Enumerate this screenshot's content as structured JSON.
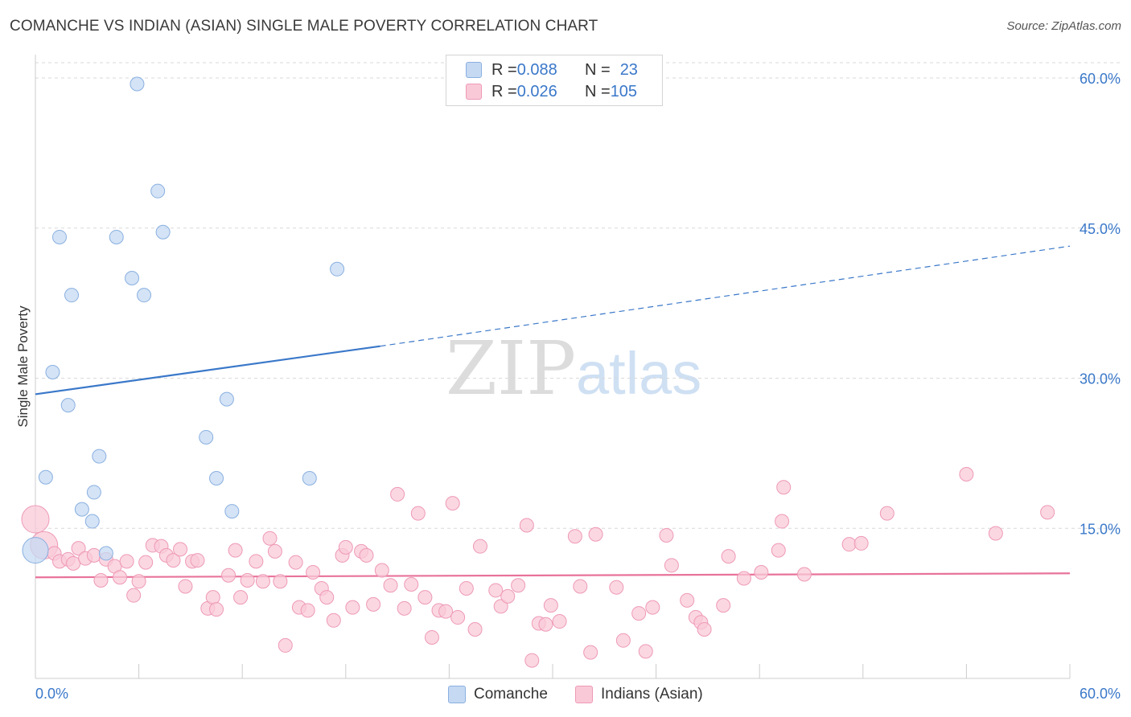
{
  "title": "COMANCHE VS INDIAN (ASIAN) SINGLE MALE POVERTY CORRELATION CHART",
  "source": "Source: ZipAtlas.com",
  "watermark": {
    "zip": "ZIP",
    "atlas": "atlas"
  },
  "legend_top": {
    "rows": [
      {
        "r_label": "R = ",
        "r_value": "0.088",
        "n_label": "N = ",
        "n_value": "23"
      },
      {
        "r_label": "R = ",
        "r_value": "0.026",
        "n_label": "N = ",
        "n_value": "105"
      }
    ]
  },
  "legend_bottom": [
    "Comanche",
    "Indians (Asian)"
  ],
  "colors": {
    "comanche_fill": "#c5d9f3",
    "comanche_stroke": "#8ab0e0",
    "comanche_line": "#3a78c9",
    "indian_fill": "#f9c9d8",
    "indian_stroke": "#ee9ab5",
    "indian_line": "#e8739a",
    "axis_label": "#3a78c9",
    "grid": "#d9d9d9"
  },
  "chart_data": {
    "type": "scatter",
    "title": "COMANCHE VS INDIAN (ASIAN) SINGLE MALE POVERTY CORRELATION CHART",
    "xlabel": "",
    "ylabel": "Single Male Poverty",
    "xlim": [
      0,
      60
    ],
    "ylim": [
      0,
      60
    ],
    "x_tick_labels": [
      "0.0%",
      "60.0%"
    ],
    "y_tick_values": [
      15,
      30,
      45,
      60
    ],
    "y_tick_labels": [
      "15.0%",
      "30.0%",
      "45.0%",
      "60.0%"
    ],
    "grid": true,
    "legend_position": "top-center",
    "series": [
      {
        "name": "Comanche",
        "r": 0.088,
        "n": 23,
        "trend": {
          "x0": 0,
          "y0": 28.4,
          "x1": 20,
          "y1": 33.2,
          "x_dash_end": 60,
          "y_dash_end": 43.2
        },
        "points": [
          [
            5.9,
            59.4
          ],
          [
            1.4,
            44.1
          ],
          [
            4.7,
            44.1
          ],
          [
            7.1,
            48.7
          ],
          [
            7.4,
            44.6
          ],
          [
            5.6,
            40.0
          ],
          [
            6.3,
            38.3
          ],
          [
            2.1,
            38.3
          ],
          [
            17.5,
            40.9
          ],
          [
            1.0,
            30.6
          ],
          [
            1.9,
            27.3
          ],
          [
            11.1,
            27.9
          ],
          [
            3.7,
            22.2
          ],
          [
            9.9,
            24.1
          ],
          [
            0.6,
            20.1
          ],
          [
            10.5,
            20.0
          ],
          [
            15.9,
            20.0
          ],
          [
            3.4,
            18.6
          ],
          [
            2.7,
            16.9
          ],
          [
            3.3,
            15.7
          ],
          [
            11.4,
            16.7
          ],
          [
            4.1,
            12.5
          ],
          [
            0.0,
            12.8
          ]
        ],
        "large_points": [
          [
            0.0,
            12.8
          ]
        ]
      },
      {
        "name": "Indians (Asian)",
        "r": 0.026,
        "n": 105,
        "trend": {
          "x0": 0,
          "y0": 10.1,
          "x1": 60,
          "y1": 10.5
        },
        "points": [
          [
            0.0,
            15.9
          ],
          [
            0.5,
            13.3
          ],
          [
            1.1,
            12.5
          ],
          [
            1.4,
            11.7
          ],
          [
            1.9,
            11.9
          ],
          [
            2.2,
            11.5
          ],
          [
            2.5,
            13.0
          ],
          [
            2.9,
            12.0
          ],
          [
            3.4,
            12.3
          ],
          [
            3.8,
            9.8
          ],
          [
            4.1,
            11.9
          ],
          [
            4.6,
            11.2
          ],
          [
            4.9,
            10.1
          ],
          [
            5.3,
            11.7
          ],
          [
            5.7,
            8.3
          ],
          [
            6.0,
            9.7
          ],
          [
            6.4,
            11.6
          ],
          [
            6.8,
            13.3
          ],
          [
            7.3,
            13.2
          ],
          [
            7.6,
            12.3
          ],
          [
            8.0,
            11.8
          ],
          [
            8.4,
            12.9
          ],
          [
            8.7,
            9.2
          ],
          [
            9.1,
            11.7
          ],
          [
            9.4,
            11.8
          ],
          [
            10.0,
            7.0
          ],
          [
            10.3,
            8.1
          ],
          [
            10.5,
            6.9
          ],
          [
            11.2,
            10.3
          ],
          [
            11.6,
            12.8
          ],
          [
            11.9,
            8.1
          ],
          [
            12.3,
            9.8
          ],
          [
            12.8,
            11.7
          ],
          [
            13.2,
            9.7
          ],
          [
            13.6,
            14.0
          ],
          [
            13.9,
            12.7
          ],
          [
            14.2,
            9.7
          ],
          [
            14.5,
            3.3
          ],
          [
            15.1,
            11.6
          ],
          [
            15.3,
            7.1
          ],
          [
            15.8,
            6.8
          ],
          [
            16.1,
            10.6
          ],
          [
            16.6,
            9.0
          ],
          [
            16.9,
            8.1
          ],
          [
            17.3,
            5.8
          ],
          [
            17.8,
            12.3
          ],
          [
            18.0,
            13.1
          ],
          [
            18.4,
            7.1
          ],
          [
            18.9,
            12.7
          ],
          [
            19.2,
            12.3
          ],
          [
            19.6,
            7.4
          ],
          [
            20.1,
            10.8
          ],
          [
            20.6,
            9.3
          ],
          [
            21.0,
            18.4
          ],
          [
            21.4,
            7.0
          ],
          [
            21.8,
            9.4
          ],
          [
            22.2,
            16.5
          ],
          [
            22.6,
            8.1
          ],
          [
            23.0,
            4.1
          ],
          [
            23.4,
            6.8
          ],
          [
            23.8,
            6.7
          ],
          [
            24.2,
            17.5
          ],
          [
            24.5,
            6.1
          ],
          [
            25.0,
            9.0
          ],
          [
            25.5,
            4.9
          ],
          [
            25.8,
            13.2
          ],
          [
            26.7,
            8.8
          ],
          [
            27.0,
            7.2
          ],
          [
            27.4,
            8.2
          ],
          [
            28.0,
            9.3
          ],
          [
            28.5,
            15.3
          ],
          [
            28.8,
            1.8
          ],
          [
            29.2,
            5.5
          ],
          [
            29.6,
            5.4
          ],
          [
            29.9,
            7.3
          ],
          [
            30.4,
            5.7
          ],
          [
            31.3,
            14.2
          ],
          [
            31.6,
            9.2
          ],
          [
            32.2,
            2.6
          ],
          [
            32.5,
            14.4
          ],
          [
            33.7,
            9.1
          ],
          [
            34.1,
            3.8
          ],
          [
            35.0,
            6.5
          ],
          [
            35.4,
            2.7
          ],
          [
            35.8,
            7.1
          ],
          [
            36.6,
            14.3
          ],
          [
            36.9,
            11.3
          ],
          [
            37.8,
            7.8
          ],
          [
            38.3,
            6.1
          ],
          [
            38.6,
            5.6
          ],
          [
            38.8,
            4.9
          ],
          [
            39.9,
            7.3
          ],
          [
            40.2,
            12.2
          ],
          [
            41.1,
            10.0
          ],
          [
            42.1,
            10.6
          ],
          [
            43.1,
            12.8
          ],
          [
            43.3,
            15.7
          ],
          [
            43.4,
            19.1
          ],
          [
            44.6,
            10.4
          ],
          [
            47.2,
            13.4
          ],
          [
            47.9,
            13.5
          ],
          [
            49.4,
            16.5
          ],
          [
            54.0,
            20.4
          ],
          [
            55.7,
            14.5
          ],
          [
            58.7,
            16.6
          ]
        ],
        "large_points": [
          [
            0.0,
            15.9
          ],
          [
            0.5,
            13.3
          ]
        ]
      }
    ]
  }
}
